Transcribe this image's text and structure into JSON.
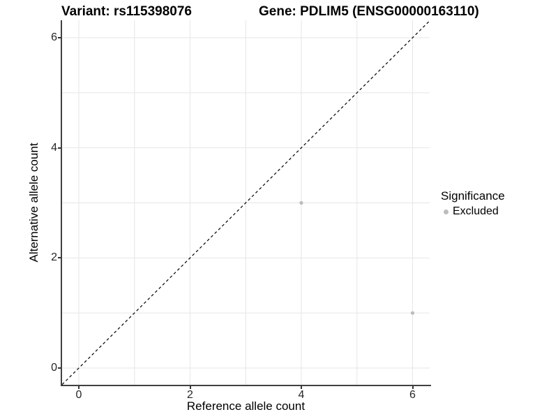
{
  "titles": {
    "variant": "Variant: rs115398076",
    "gene": "Gene: PDLIM5 (ENSG00000163110)"
  },
  "axes": {
    "x": {
      "label": "Reference allele count",
      "tick_labels": [
        "0",
        "2",
        "4",
        "6"
      ],
      "tick_values": [
        0,
        2,
        4,
        6
      ]
    },
    "y": {
      "label": "Alternative allele count",
      "tick_labels": [
        "0",
        "2",
        "4",
        "6"
      ],
      "tick_values": [
        0,
        2,
        4,
        6
      ]
    }
  },
  "legend": {
    "title": "Significance",
    "items": [
      {
        "label": "Excluded",
        "color": "#bcbcbc"
      }
    ]
  },
  "colors": {
    "grid": "#e6e6e6",
    "axis_line": "#404040",
    "tick": "#333333",
    "point": "#bcbcbc",
    "reference_line": "#000000"
  },
  "chart_data": {
    "type": "scatter",
    "title": "Variant: rs115398076 | Gene: PDLIM5 (ENSG00000163110)",
    "xlabel": "Reference allele count",
    "ylabel": "Alternative allele count",
    "xlim": [
      -0.3,
      6.3
    ],
    "ylim": [
      -0.3,
      6.3
    ],
    "x_ticks": [
      0,
      2,
      4,
      6
    ],
    "y_ticks": [
      0,
      2,
      4,
      6
    ],
    "grid": true,
    "grid_interval": 1,
    "legend_position": "right",
    "series": [
      {
        "name": "Excluded",
        "color": "#bcbcbc",
        "points": [
          [
            4,
            3
          ],
          [
            6,
            1
          ]
        ]
      }
    ],
    "reference_line": {
      "equation": "y = x",
      "style": "dashed",
      "color": "#000000"
    }
  }
}
